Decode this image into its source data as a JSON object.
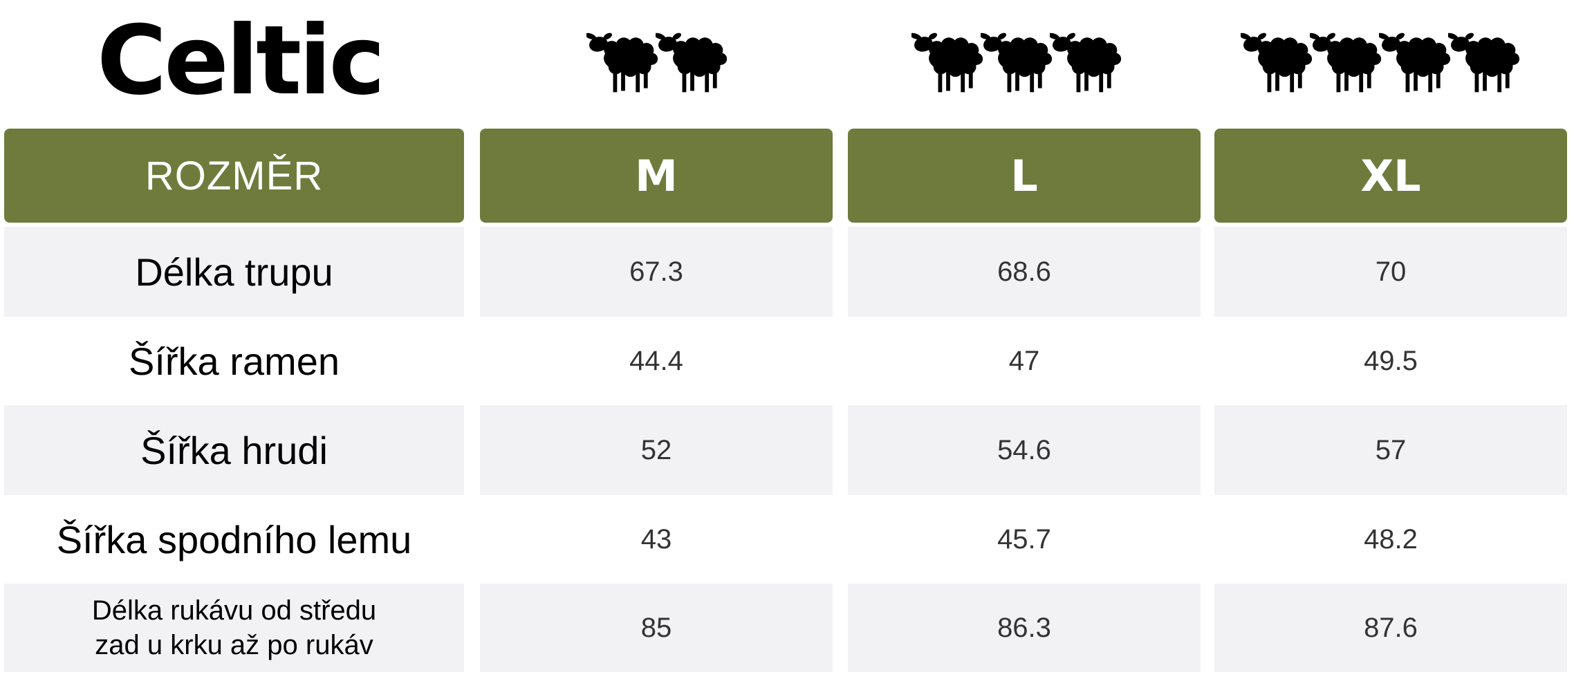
{
  "brand": "Celtic",
  "sheep_counts": [
    2,
    3,
    4
  ],
  "table": {
    "header": {
      "label": "ROZMĚR",
      "sizes": [
        "M",
        "L",
        "XL"
      ]
    },
    "rows": [
      {
        "label": "Délka trupu",
        "values": [
          "67.3",
          "68.6",
          "70"
        ]
      },
      {
        "label": "Šířka ramen",
        "values": [
          "44.4",
          "47",
          "49.5"
        ]
      },
      {
        "label": "Šířka hrudi",
        "values": [
          "52",
          "54.6",
          "57"
        ]
      },
      {
        "label": "Šířka spodního lemu",
        "values": [
          "43",
          "45.7",
          "48.2"
        ]
      },
      {
        "label_line1": "Délka rukávu od středu",
        "label_line2": "zad u krku až po rukáv",
        "values": [
          "85",
          "86.3",
          "87.6"
        ]
      }
    ]
  },
  "colors": {
    "header_bg": "#6f7b3c",
    "row_alt_bg": "#f2f2f4",
    "sheep": "#000000"
  }
}
